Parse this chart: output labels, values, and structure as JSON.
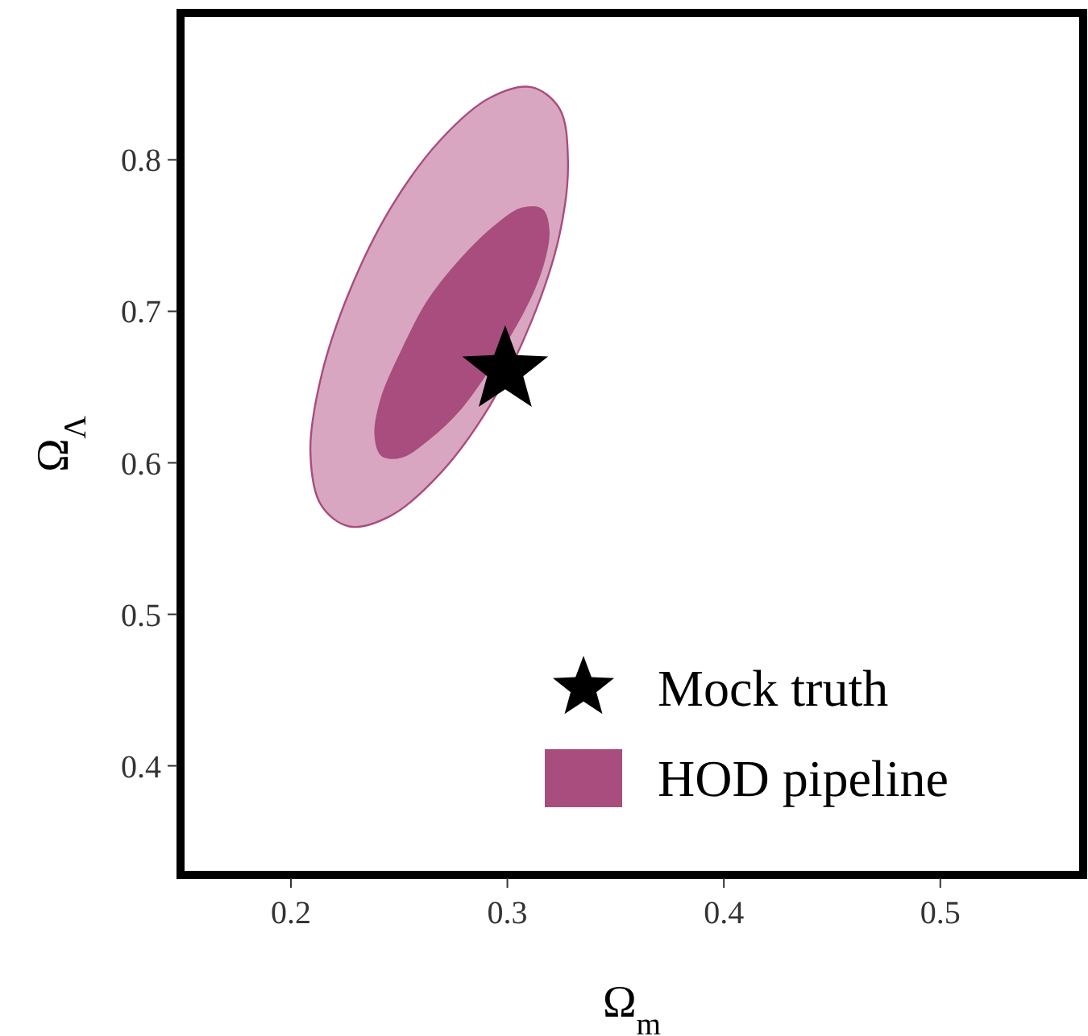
{
  "chart_data": {
    "type": "area",
    "xlabel": "Ω$_{m}$",
    "ylabel": "Ω$_{Λ}$",
    "xlim": [
      0.149,
      0.566
    ],
    "ylim": [
      0.328,
      0.897
    ],
    "xticks": [
      0.2,
      0.3,
      0.4,
      0.5
    ],
    "yticks": [
      0.4,
      0.5,
      0.6,
      0.7,
      0.8
    ],
    "grid": false,
    "legend": "bottom right",
    "series": [
      {
        "color": "#d8a6c0",
        "x": [
          0.328,
          0.324,
          0.311,
          0.292,
          0.269,
          0.246,
          0.227,
          0.214,
          0.209,
          0.214,
          0.227,
          0.246,
          0.269,
          0.292,
          0.311,
          0.324
        ],
        "values": [
          0.799,
          0.75,
          0.693,
          0.638,
          0.593,
          0.565,
          0.558,
          0.572,
          0.607,
          0.657,
          0.713,
          0.768,
          0.813,
          0.841,
          0.848,
          0.834
        ]
      },
      {
        "name": "HOD pipeline",
        "color": "#a84d7e",
        "x": [
          0.319,
          0.316,
          0.307,
          0.295,
          0.279,
          0.263,
          0.251,
          0.242,
          0.239,
          0.242,
          0.251,
          0.263,
          0.279,
          0.295,
          0.307,
          0.316
        ],
        "values": [
          0.753,
          0.729,
          0.699,
          null,
          0.637,
          0.615,
          0.604,
          0.605,
          0.619,
          0.643,
          0.673,
          0.706,
          0.735,
          0.757,
          0.768,
          0.767
        ]
      },
      {
        "type": "scatter",
        "name": "Mock truth",
        "color": "#000000",
        "marker": "star",
        "x": [
          0.299
        ],
        "values": [
          0.661
        ]
      }
    ]
  }
}
